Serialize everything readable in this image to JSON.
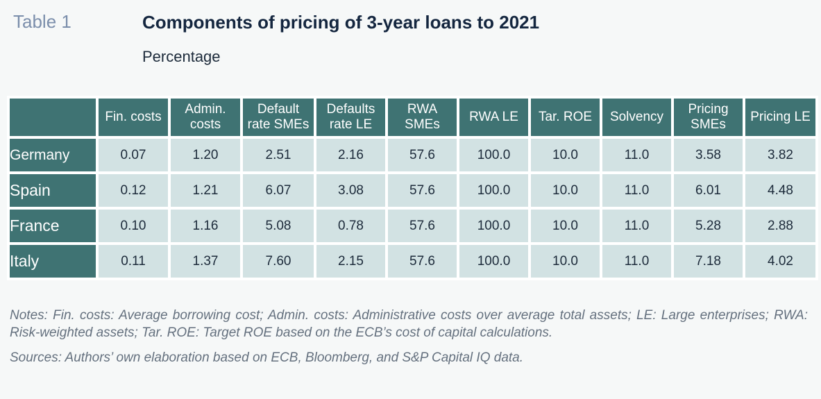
{
  "header": {
    "table_label": "Table 1",
    "title": "Components of pricing of 3-year loans to 2021",
    "subtitle": "Percentage"
  },
  "table": {
    "columns": [
      [
        "Fin. costs"
      ],
      [
        "Admin.",
        "costs"
      ],
      [
        "Default",
        "rate SMEs"
      ],
      [
        "Defaults",
        "rate LE"
      ],
      [
        "RWA",
        "SMEs"
      ],
      [
        "RWA LE"
      ],
      [
        "Tar. ROE"
      ],
      [
        "Solvency"
      ],
      [
        "Pricing",
        "SMEs"
      ],
      [
        "Pricing LE"
      ]
    ],
    "rows": [
      {
        "country": "Germany",
        "values": [
          "0.07",
          "1.20",
          "2.51",
          "2.16",
          "57.6",
          "100.0",
          "10.0",
          "11.0",
          "3.58",
          "3.82"
        ]
      },
      {
        "country": "Spain",
        "values": [
          "0.12",
          "1.21",
          "6.07",
          "3.08",
          "57.6",
          "100.0",
          "10.0",
          "11.0",
          "6.01",
          "4.48"
        ]
      },
      {
        "country": "France",
        "values": [
          "0.10",
          "1.16",
          "5.08",
          "0.78",
          "57.6",
          "100.0",
          "10.0",
          "11.0",
          "5.28",
          "2.88"
        ]
      },
      {
        "country": "Italy",
        "values": [
          "0.11",
          "1.37",
          "7.60",
          "2.15",
          "57.6",
          "100.0",
          "10.0",
          "11.0",
          "7.18",
          "4.02"
        ]
      }
    ]
  },
  "footer": {
    "notes": "Notes: Fin. costs: Average borrowing cost; Admin. costs: Administrative costs over average total assets; LE: Large enterprises; RWA: Risk-weighted assets; Tar. ROE: Target ROE based on the ECB’s cost of capital calculations.",
    "sources": "Sources: Authors’ own elaboration based on ECB, Bloomberg, and S&P Capital IQ data."
  },
  "colors": {
    "header_fill": "#3f7373",
    "cell_fill": "#d2e2e3",
    "table_label": "#7b8eab",
    "title": "#14263f",
    "notes": "#64707e"
  }
}
